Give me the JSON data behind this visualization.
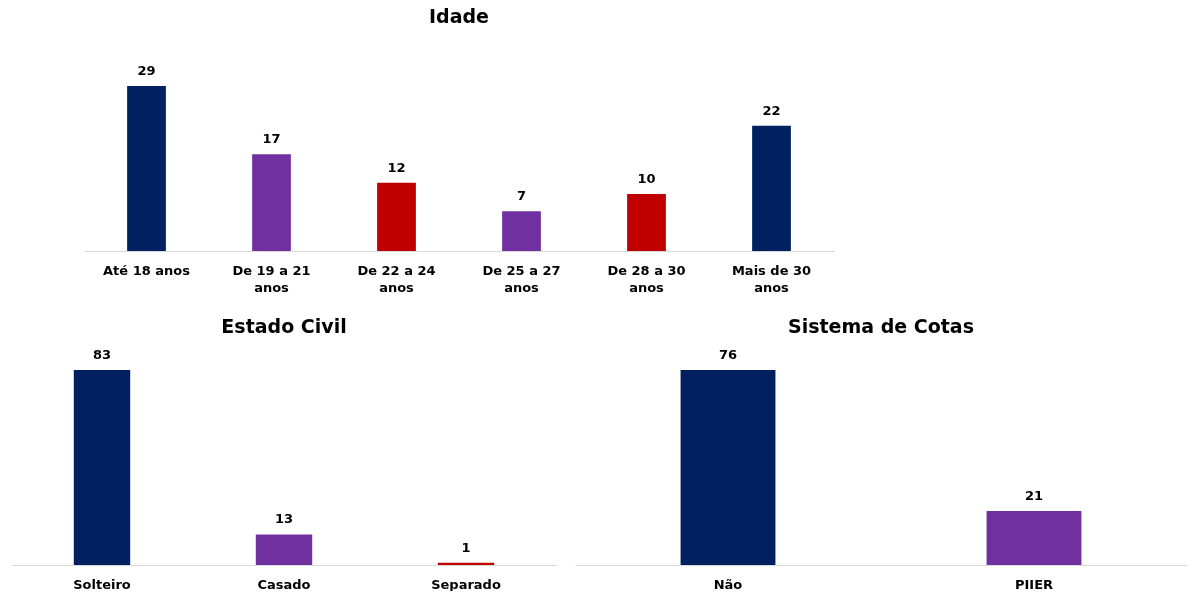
{
  "chart_data": [
    {
      "type": "bar",
      "title": "Idade",
      "categories": [
        "Até 18 anos",
        "De 19 a 21 anos",
        "De 22 a 24 anos",
        "De 25 a 27 anos",
        "De 28 a 30 anos",
        "Mais de 30 anos"
      ],
      "values": [
        29,
        17,
        12,
        7,
        10,
        22
      ],
      "colors": [
        "#002060",
        "#7030a0",
        "#c00000",
        "#7030a0",
        "#c00000",
        "#002060"
      ],
      "data_labels": true
    },
    {
      "type": "bar",
      "title": "Estado Civil",
      "categories": [
        "Solteiro",
        "Casado",
        "Separado"
      ],
      "values": [
        83,
        13,
        1
      ],
      "colors": [
        "#002060",
        "#7030a0",
        "#c00000"
      ],
      "data_labels": true
    },
    {
      "type": "bar",
      "title": "Sistema de Cotas",
      "categories": [
        "Não",
        "PIIER"
      ],
      "values": [
        76,
        21
      ],
      "colors": [
        "#002060",
        "#7030a0"
      ],
      "data_labels": true
    }
  ]
}
